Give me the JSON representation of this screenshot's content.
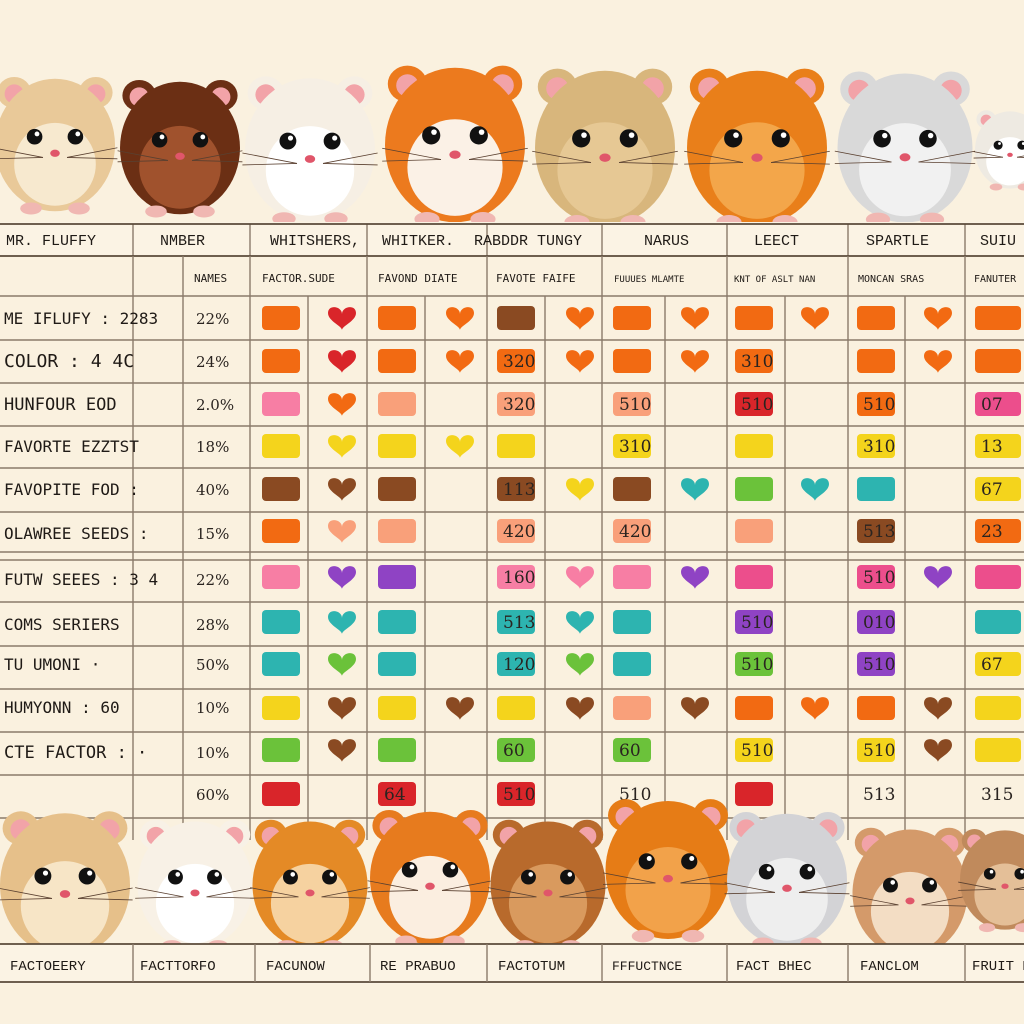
{
  "header_labels": [
    "MR. FLUFFY",
    "NMBER",
    "WHITSHERS,",
    "WHITKER.",
    "RABDDR TUNGY",
    "NARUS",
    "LEECT",
    "SPARTLE",
    "SUIU"
  ],
  "subheader_labels": [
    "NAMES",
    "FACTOR.SUDE",
    "FAVOND DIATE",
    "FAVOTE FAIFE",
    "FUUUES MLAMTE",
    "KNT OF ASLT NAN",
    "MONCAN SRAS",
    "FANUTER"
  ],
  "row_labels": [
    "ME IFLUFY : 2283",
    "COLOR : 4 4C",
    "HUNFOUR EOD",
    "FAVORTE EZZTST",
    "FAVOPITE FOD :",
    "OLAWREE SEEDS :",
    "FUTW SEEES : 3 4",
    "COMS SERIERS",
    "TU UMONI ·",
    "HUMYONN : 60",
    "CTE FACTOR : ·"
  ],
  "row_percents": [
    "22%",
    "24%",
    "2.0%",
    "18%",
    "40%",
    "15%",
    "22%",
    "28%",
    "50%",
    "10%",
    "10%",
    "60%"
  ],
  "cell_texts": {
    "r2c5": "320",
    "r2c9": "310",
    "r3c5": "320",
    "r3c7": "510",
    "r3c9": "510",
    "r3c11": "510",
    "r3c13": "07",
    "r4c7": "310",
    "r4c11": "310",
    "r4c13": "13",
    "r5c5": "113",
    "r5c13": "67",
    "r6c5": "420",
    "r6c7": "420",
    "r6c11": "513",
    "r6c13": "23",
    "r7c5": "160",
    "r7c11": "510",
    "r8c5": "513",
    "r8c9": "510",
    "r8c11": "010",
    "r9c5": "120",
    "r9c9": "510",
    "r9c11": "510",
    "r9c13": "67",
    "r11c5": "60",
    "r11c7": "60",
    "r11c9": "510",
    "r11c11": "510",
    "r12c3": "64",
    "r12c5": "510",
    "r12c7": "510",
    "r12c11": "513",
    "r12c13": "315"
  },
  "footer_labels": [
    "FACTOEERY",
    "FACTTORFO",
    "FACUNOW",
    "RE PRABUO",
    "FACTOTUM",
    "FFFUCTNCE",
    "FACT BHEC",
    "FANCLOM",
    "FRUIT D"
  ],
  "top_hamster_icons": [
    "hamster-cream-icon",
    "hamster-brown-icon",
    "hamster-white-icon",
    "hamster-orange-white-icon",
    "hamster-tan-sleeping-icon",
    "hamster-orange-icon",
    "hamster-gray-icon",
    "hamster-white-partial-icon"
  ],
  "bottom_hamster_icons": [
    "hamster-cream-icon",
    "hamster-white-icon",
    "hamster-ginger-icon",
    "hamster-orange-white-icon",
    "hamster-brown-icon",
    "hamster-orange-icon",
    "hamster-gray-icon",
    "hamster-tricolor-icon",
    "hamster-brown-partial-icon"
  ],
  "colors": {
    "background": "#faf1df",
    "orange": "#f26a12",
    "red": "#d9252a",
    "pink": "#f77ea4",
    "peach": "#f9a07a",
    "yellow": "#f4d41c",
    "brown": "#8a4a22",
    "teal": "#2db4b0",
    "green": "#6bc23a",
    "purple": "#8f43c4",
    "magenta": "#ec4e8c"
  }
}
